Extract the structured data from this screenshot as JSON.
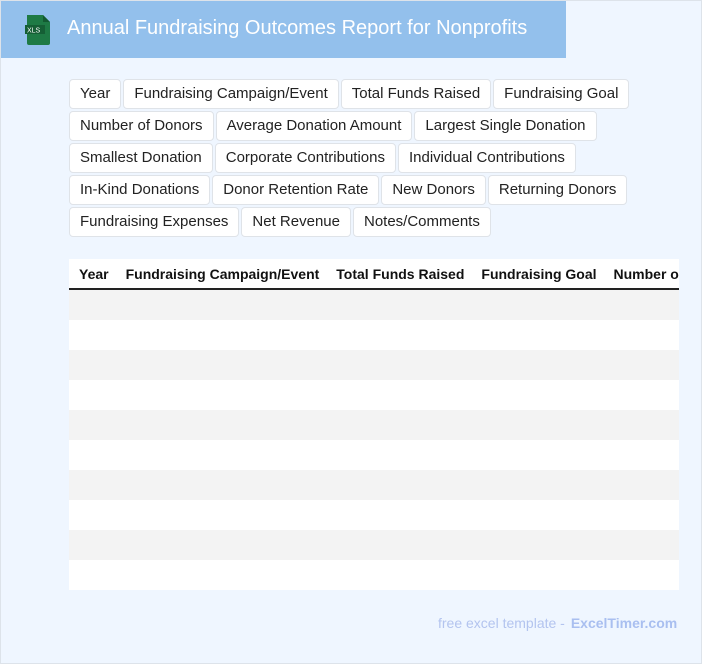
{
  "header": {
    "title": "Annual Fundraising Outcomes Report for Nonprofits",
    "logo_text": "XLS"
  },
  "fields": [
    "Year",
    "Fundraising Campaign/Event",
    "Total Funds Raised",
    "Fundraising Goal",
    "Number of Donors",
    "Average Donation Amount",
    "Largest Single Donation",
    "Smallest Donation",
    "Corporate Contributions",
    "Individual Contributions",
    "In-Kind Donations",
    "Donor Retention Rate",
    "New Donors",
    "Returning Donors",
    "Fundraising Expenses",
    "Net Revenue",
    "Notes/Comments"
  ],
  "table": {
    "columns": [
      "Year",
      "Fundraising Campaign/Event",
      "Total Funds Raised",
      "Fundraising Goal",
      "Number of Donors"
    ],
    "row_count": 10
  },
  "footer": {
    "text": "free excel template -",
    "brand": "ExcelTimer.com"
  },
  "colors": {
    "header_bg": "#93c0ec",
    "page_bg": "#eff6ff",
    "logo_green": "#1e7a45"
  }
}
